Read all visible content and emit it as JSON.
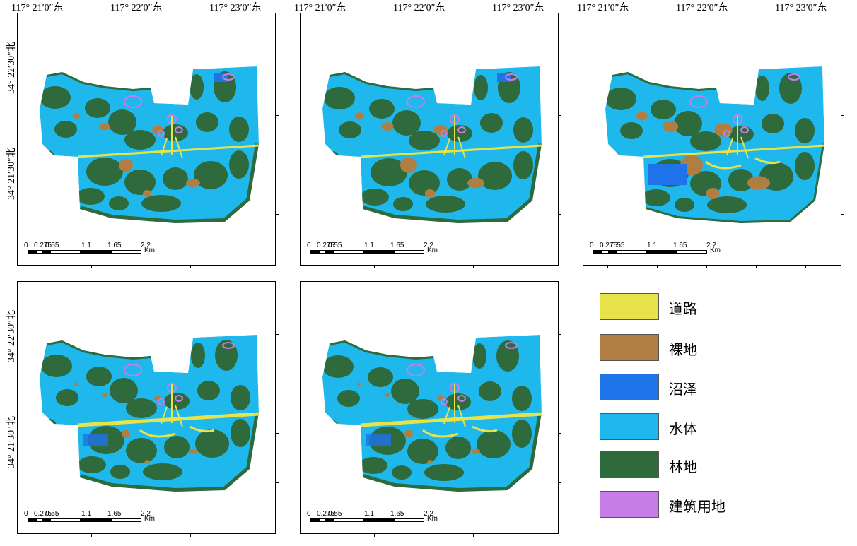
{
  "figure": {
    "longitude_labels": [
      "117° 21′0″东",
      "117° 22′0″东",
      "117° 23′0″东"
    ],
    "latitude_labels": [
      "34° 22′30″北",
      "34° 21′30″北"
    ],
    "scale_bar": {
      "ticks": [
        "0",
        "0.275",
        "0.55",
        "1.1",
        "1.65",
        "2.2"
      ],
      "unit": "Km"
    }
  },
  "legend": {
    "items": [
      {
        "label": "道路",
        "color": "#E8E34A"
      },
      {
        "label": "裸地",
        "color": "#B07E42"
      },
      {
        "label": "沼泽",
        "color": "#1E73E8"
      },
      {
        "label": "水体",
        "color": "#1FB8EC"
      },
      {
        "label": "林地",
        "color": "#2E6A3C"
      },
      {
        "label": "建筑用地",
        "color": "#C77DE8"
      }
    ]
  },
  "colors": {
    "water": "#1FB8EC",
    "forest": "#2E6A3C",
    "road": "#E8E34A",
    "bare": "#B07E42",
    "marsh": "#1E73E8",
    "building": "#C77DE8"
  },
  "panels": [
    {
      "id": "map-1",
      "has_longitude_labels": true,
      "has_latitude_labels": true
    },
    {
      "id": "map-2",
      "has_longitude_labels": true,
      "has_latitude_labels": false
    },
    {
      "id": "map-3",
      "has_longitude_labels": true,
      "has_latitude_labels": false
    },
    {
      "id": "map-4",
      "has_longitude_labels": false,
      "has_latitude_labels": true
    },
    {
      "id": "map-5",
      "has_longitude_labels": false,
      "has_latitude_labels": false
    }
  ]
}
